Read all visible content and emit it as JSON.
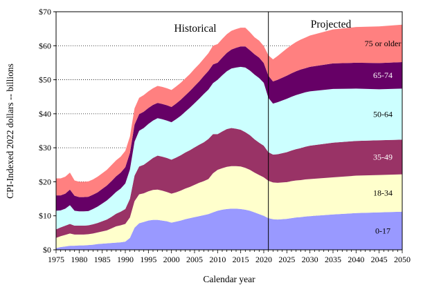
{
  "chart_data": {
    "type": "area",
    "stacked": true,
    "xlabel": "Calendar year",
    "ylabel": "CPI-Indexed 2022 dollars -- billions",
    "xlim": [
      1975,
      2050
    ],
    "ylim": [
      0,
      70
    ],
    "x_ticks": [
      "1975",
      "1980",
      "1985",
      "1990",
      "1995",
      "2000",
      "2005",
      "2010",
      "2015",
      "2020",
      "2025",
      "2030",
      "2035",
      "2040",
      "2045",
      "2050"
    ],
    "y_ticks": [
      "$0",
      "$10",
      "$20",
      "$30",
      "$40",
      "$50",
      "$60",
      "$70"
    ],
    "grid": "horizontal dotted",
    "section_labels": {
      "historical": "Historical",
      "projected": "Projected"
    },
    "divider_year": 2021,
    "x": [
      1975,
      1976,
      1977,
      1978,
      1979,
      1980,
      1981,
      1982,
      1983,
      1984,
      1985,
      1986,
      1987,
      1988,
      1989,
      1990,
      1991,
      1992,
      1993,
      1994,
      1995,
      1996,
      1997,
      1998,
      1999,
      2000,
      2001,
      2002,
      2003,
      2004,
      2005,
      2006,
      2007,
      2008,
      2009,
      2010,
      2011,
      2012,
      2013,
      2014,
      2015,
      2016,
      2017,
      2018,
      2019,
      2020,
      2021,
      2022,
      2023,
      2024,
      2025,
      2026,
      2027,
      2028,
      2029,
      2030,
      2035,
      2040,
      2045,
      2050
    ],
    "series": [
      {
        "name": "0-17",
        "color": "#9999ff",
        "label_color": "#000000",
        "values": [
          0.5,
          0.8,
          1.0,
          1.2,
          1.2,
          1.3,
          1.3,
          1.4,
          1.5,
          1.7,
          1.8,
          1.9,
          2.0,
          2.1,
          2.2,
          2.4,
          3.5,
          6.5,
          7.8,
          8.2,
          8.6,
          8.8,
          8.8,
          8.6,
          8.4,
          8.0,
          8.3,
          8.6,
          9.0,
          9.3,
          9.6,
          9.9,
          10.2,
          10.5,
          11.0,
          11.5,
          11.8,
          12.0,
          12.1,
          12.1,
          12.0,
          11.8,
          11.5,
          11.0,
          10.5,
          10.0,
          9.3,
          9.0,
          8.9,
          9.0,
          9.1,
          9.3,
          9.5,
          9.6,
          9.8,
          9.9,
          10.4,
          10.8,
          11.0,
          11.2
        ]
      },
      {
        "name": "18-34",
        "color": "#ffffcc",
        "label_color": "#000000",
        "values": [
          3.0,
          3.2,
          3.4,
          3.6,
          3.3,
          3.2,
          3.2,
          3.2,
          3.3,
          3.4,
          3.6,
          3.8,
          4.3,
          4.8,
          5.0,
          5.2,
          6.0,
          7.8,
          8.5,
          8.4,
          8.6,
          8.8,
          8.9,
          8.8,
          8.6,
          8.5,
          8.6,
          8.8,
          9.0,
          9.2,
          9.5,
          9.8,
          10.0,
          10.3,
          11.5,
          12.0,
          12.2,
          12.4,
          12.5,
          12.5,
          12.5,
          12.3,
          12.0,
          11.7,
          11.5,
          11.3,
          11.0,
          10.8,
          10.8,
          10.8,
          10.8,
          10.9,
          10.9,
          10.9,
          10.9,
          10.9,
          10.9,
          11.0,
          11.0,
          11.0
        ]
      },
      {
        "name": "35-49",
        "color": "#993366",
        "label_color": "#ffffff",
        "values": [
          2.5,
          2.6,
          2.7,
          2.8,
          2.6,
          2.6,
          2.6,
          2.6,
          2.7,
          2.8,
          3.0,
          3.2,
          3.4,
          3.7,
          4.0,
          4.4,
          5.5,
          7.5,
          8.2,
          8.4,
          8.8,
          9.4,
          10.0,
          10.0,
          10.0,
          10.0,
          10.2,
          10.4,
          10.6,
          10.8,
          11.0,
          11.2,
          11.4,
          11.8,
          11.5,
          10.5,
          10.8,
          11.1,
          11.2,
          11.0,
          10.8,
          10.5,
          10.2,
          9.8,
          9.5,
          9.3,
          8.4,
          8.2,
          8.4,
          8.6,
          8.8,
          9.0,
          9.2,
          9.4,
          9.6,
          9.8,
          10.2,
          10.2,
          10.2,
          10.2
        ]
      },
      {
        "name": "50-64",
        "color": "#ccffff",
        "label_color": "#000000",
        "values": [
          5.5,
          5.0,
          5.0,
          5.5,
          4.4,
          4.2,
          4.2,
          4.2,
          4.5,
          4.8,
          5.2,
          5.6,
          6.0,
          6.4,
          6.8,
          7.5,
          8.6,
          10.0,
          10.5,
          10.8,
          11.0,
          11.0,
          11.0,
          11.0,
          11.0,
          11.0,
          11.3,
          11.6,
          12.0,
          12.5,
          13.0,
          13.5,
          14.2,
          14.5,
          15.0,
          16.0,
          16.5,
          17.0,
          17.5,
          18.0,
          18.5,
          19.0,
          19.0,
          19.0,
          19.0,
          18.5,
          16.0,
          15.0,
          15.3,
          15.5,
          15.7,
          15.8,
          15.9,
          16.0,
          16.0,
          16.0,
          15.8,
          15.4,
          15.0,
          15.0
        ]
      },
      {
        "name": "65-74",
        "color": "#660066",
        "label_color": "#ffffff",
        "values": [
          4.5,
          4.4,
          4.4,
          4.6,
          4.4,
          4.2,
          4.2,
          4.2,
          4.2,
          4.2,
          4.3,
          4.4,
          4.5,
          4.6,
          4.7,
          4.8,
          4.9,
          5.0,
          4.9,
          4.8,
          4.7,
          4.6,
          4.5,
          4.5,
          4.5,
          4.5,
          4.6,
          4.7,
          4.8,
          4.9,
          5.0,
          5.1,
          5.3,
          5.5,
          5.5,
          5.0,
          5.2,
          5.4,
          5.6,
          5.8,
          6.0,
          6.2,
          6.0,
          6.0,
          6.0,
          5.8,
          6.5,
          6.5,
          6.6,
          6.7,
          6.8,
          6.9,
          7.0,
          7.1,
          7.1,
          7.2,
          7.5,
          7.6,
          7.7,
          7.8
        ]
      },
      {
        "name": "75 or older",
        "color": "#ff8080",
        "label_color": "#000000",
        "values": [
          5.0,
          5.0,
          5.0,
          5.0,
          4.5,
          4.5,
          4.5,
          4.5,
          4.5,
          4.6,
          4.6,
          4.6,
          4.7,
          4.7,
          4.7,
          4.8,
          4.8,
          4.8,
          4.8,
          4.9,
          4.9,
          4.9,
          5.0,
          5.0,
          5.0,
          5.0,
          5.0,
          5.0,
          5.0,
          5.0,
          5.1,
          5.1,
          5.1,
          5.2,
          5.5,
          5.5,
          5.5,
          5.5,
          5.5,
          5.5,
          5.5,
          5.5,
          5.3,
          5.0,
          5.0,
          5.0,
          6.0,
          6.5,
          7.0,
          7.5,
          8.0,
          8.3,
          8.6,
          8.8,
          9.0,
          9.2,
          10.0,
          10.5,
          10.8,
          11.0
        ]
      }
    ]
  }
}
